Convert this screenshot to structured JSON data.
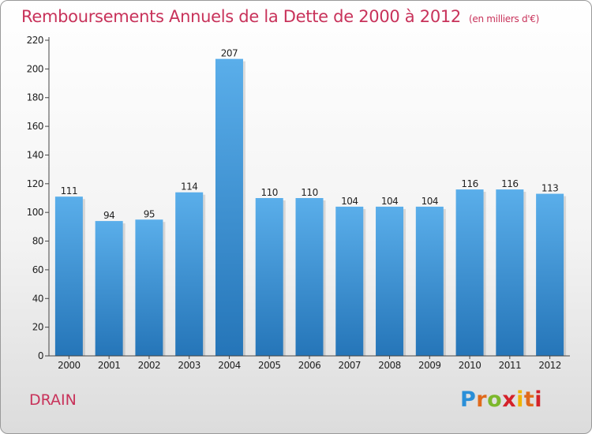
{
  "chart_data": {
    "type": "bar",
    "title": "Remboursements Annuels de la Dette de 2000 à 2012",
    "unit_label": "(en milliers d'€)",
    "categories": [
      "2000",
      "2001",
      "2002",
      "2003",
      "2004",
      "2005",
      "2006",
      "2007",
      "2008",
      "2009",
      "2010",
      "2011",
      "2012"
    ],
    "values": [
      111,
      94,
      95,
      114,
      207,
      110,
      110,
      104,
      104,
      104,
      116,
      116,
      113
    ],
    "ylim": [
      0,
      220
    ],
    "yticks": [
      0,
      20,
      40,
      60,
      80,
      100,
      120,
      140,
      160,
      180,
      200,
      220
    ],
    "grid": false,
    "colors": {
      "bar_top": "#5aaeea",
      "bar_bottom": "#2575b8",
      "text": "#222222"
    }
  },
  "footer": {
    "commune": "DRAIN",
    "logo": "Proxiti"
  }
}
